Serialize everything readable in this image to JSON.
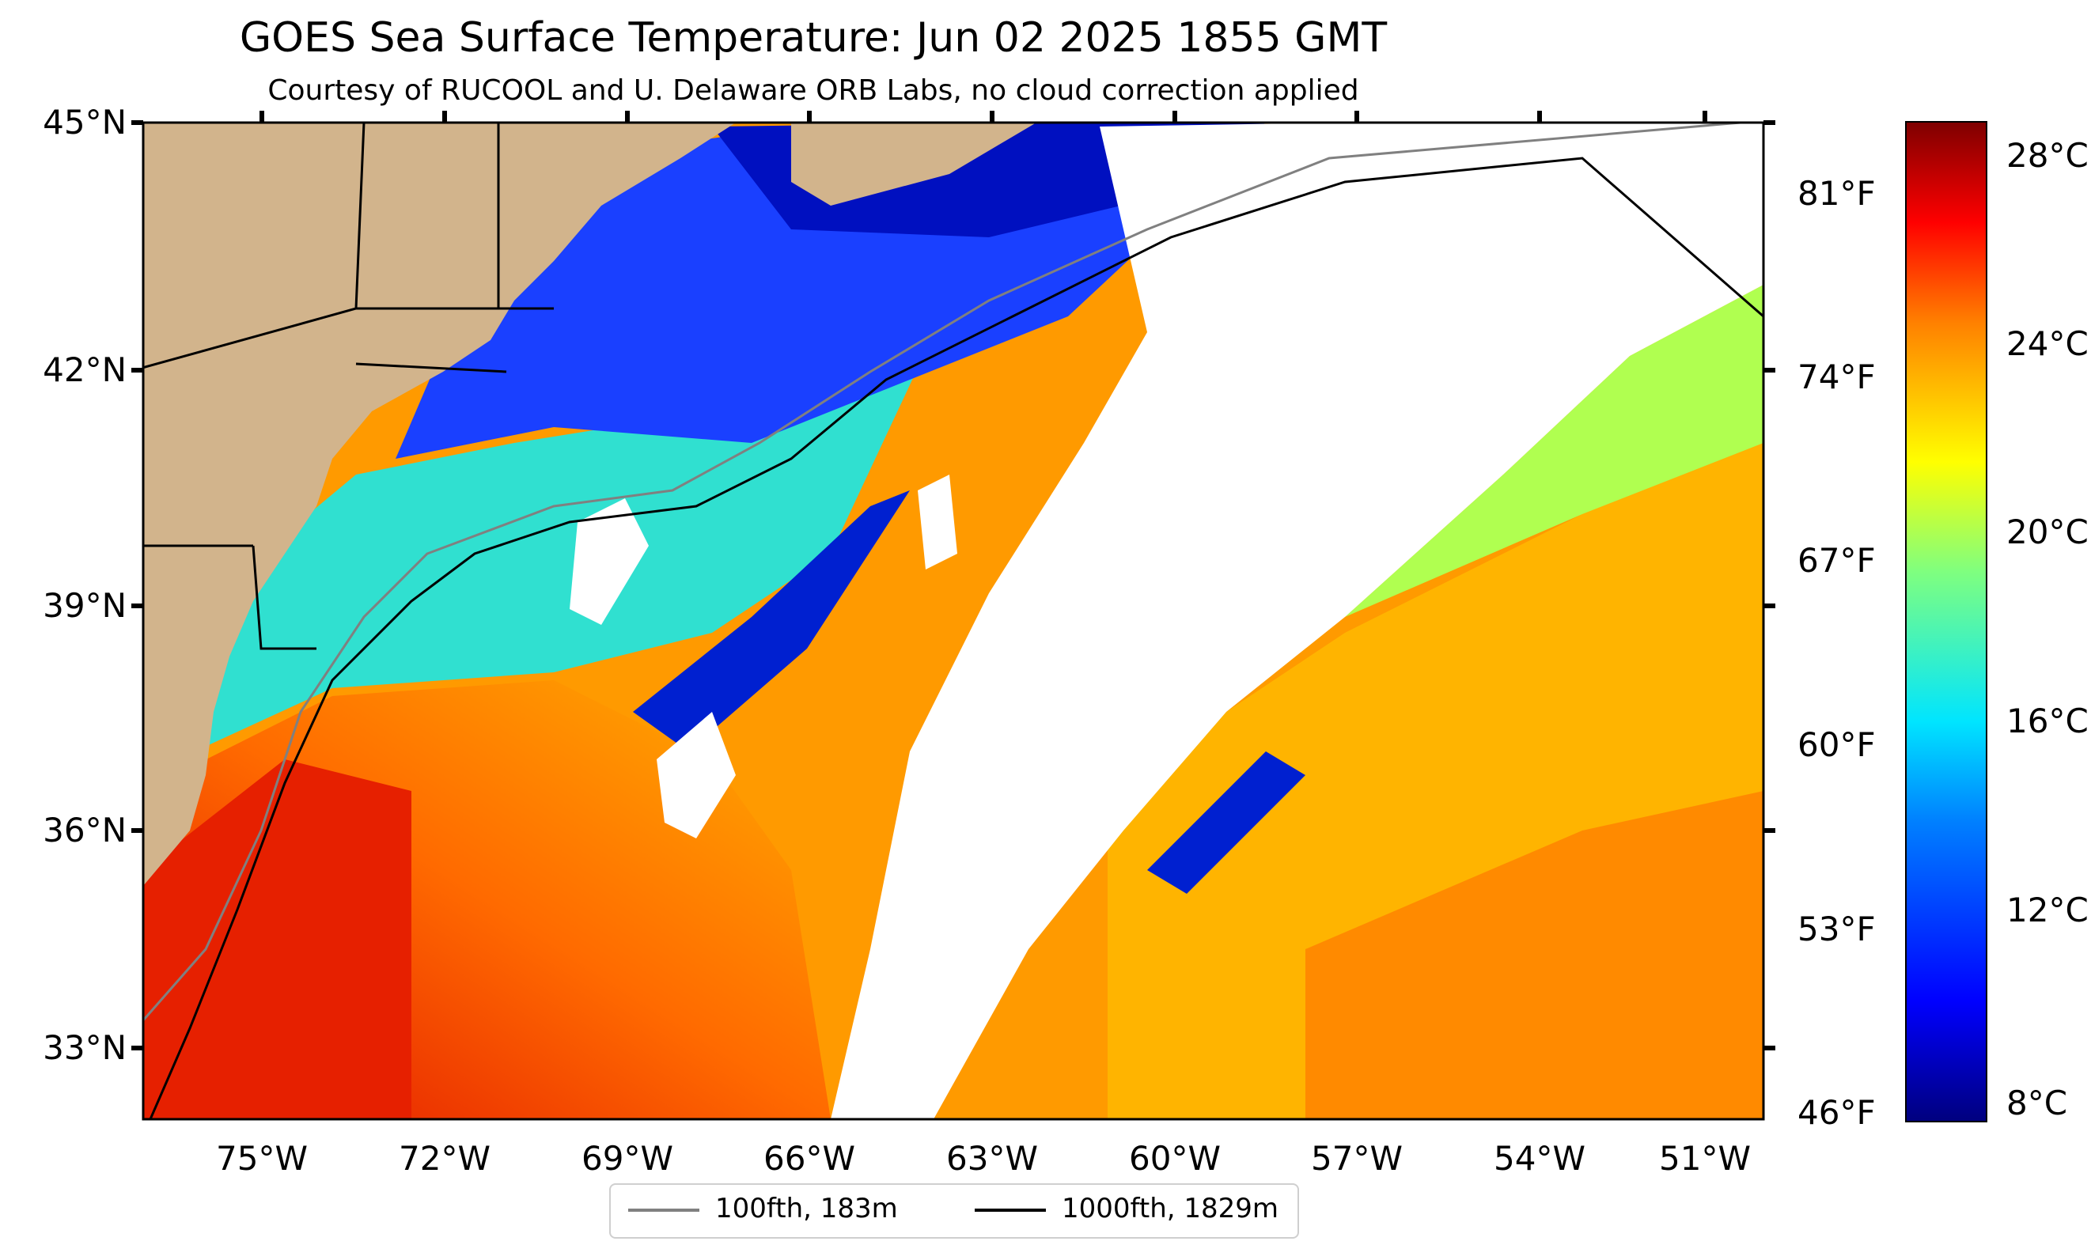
{
  "map": {
    "title": "GOES Sea Surface Temperature: Jun 02 2025 1855 GMT",
    "subtitle": "Courtesy of RUCOOL and U. Delaware ORB Labs, no cloud correction applied",
    "lat_labels": [
      "45°N",
      "42°N",
      "39°N",
      "36°N",
      "33°N"
    ],
    "lon_labels": [
      "75°W",
      "72°W",
      "69°W",
      "66°W",
      "63°W",
      "60°W",
      "57°W",
      "54°W",
      "51°W"
    ],
    "fahrenheit_labels": [
      "81°F",
      "74°F",
      "67°F",
      "60°F",
      "53°F",
      "46°F"
    ],
    "celsius_labels": [
      "28°C",
      "24°C",
      "20°C",
      "16°C",
      "12°C",
      "8°C"
    ],
    "legend": [
      {
        "label": "100fth, 183m",
        "color": "#808080"
      },
      {
        "label": "1000fth, 1829m",
        "color": "#000000"
      }
    ],
    "colors": {
      "land": "#d2b48c",
      "cloud": "#ffffff"
    }
  }
}
